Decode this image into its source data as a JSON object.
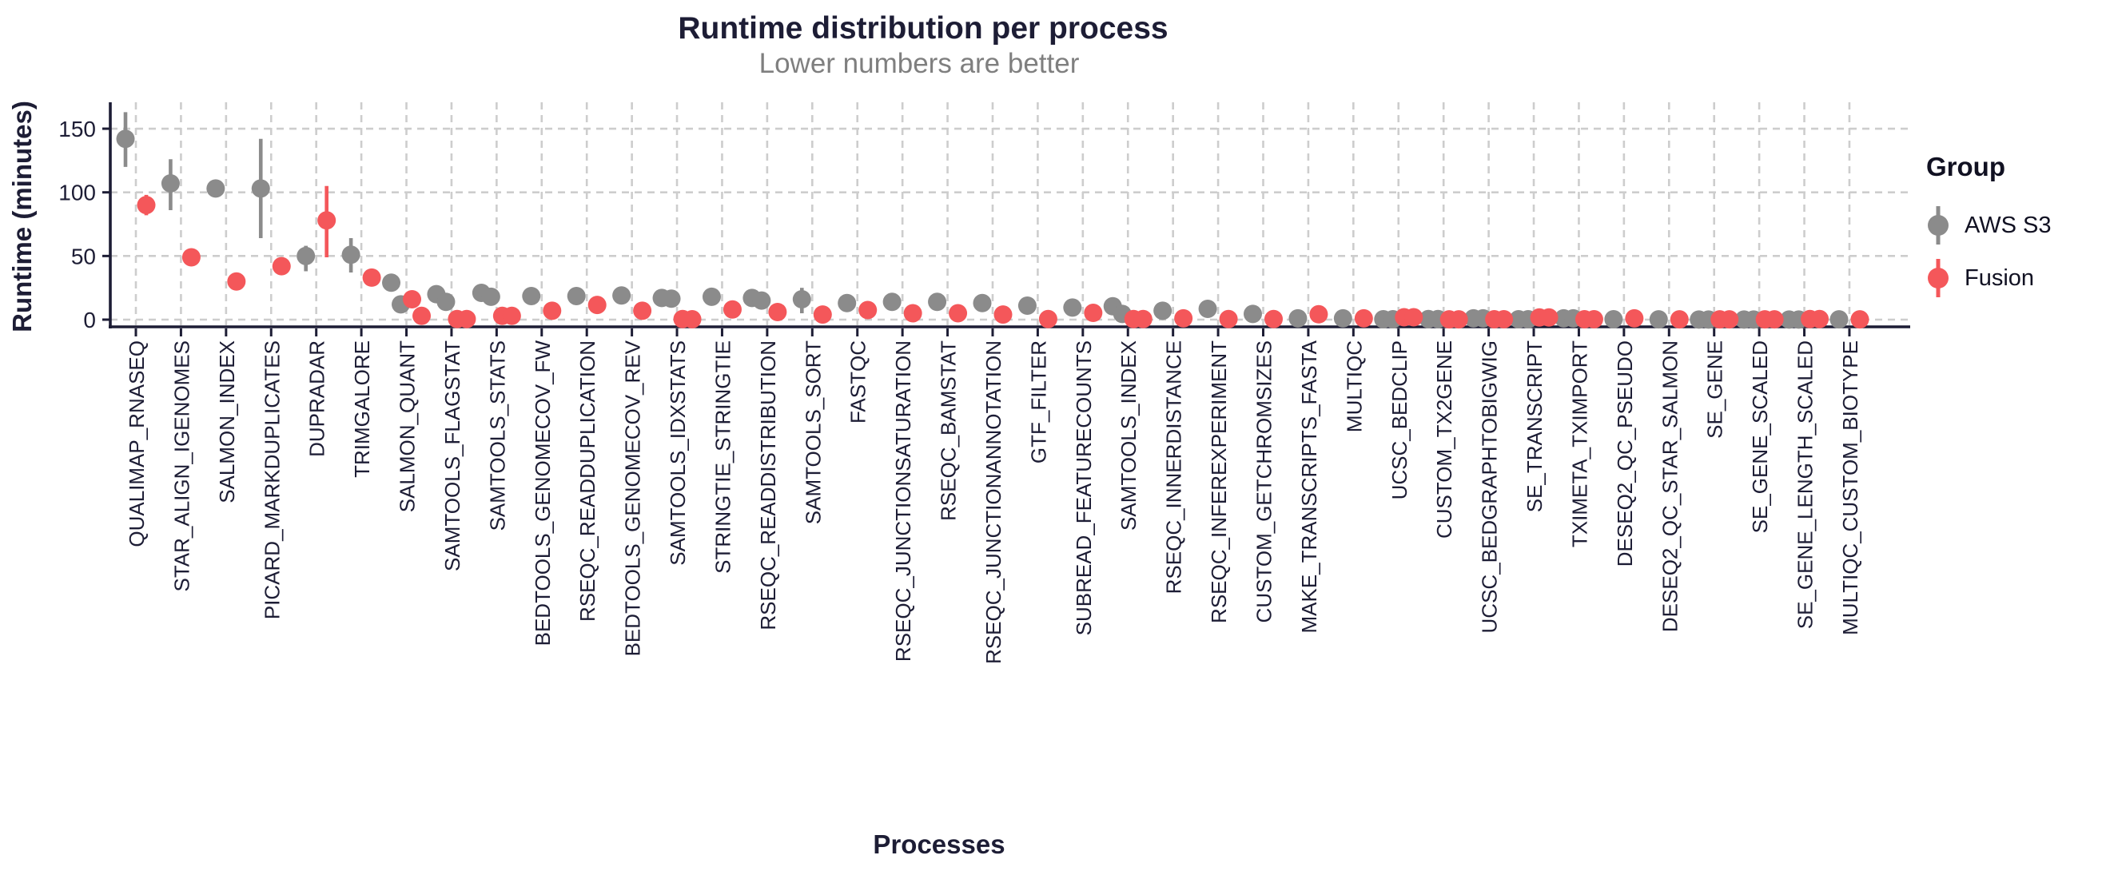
{
  "chart": {
    "title": "Runtime distribution per process",
    "subtitle": "Lower numbers are better",
    "xlabel": "Processes",
    "ylabel": "Runtime (minutes)"
  },
  "legend": {
    "title": "Group",
    "items": [
      {
        "label": "AWS S3",
        "color": "#8b8b8b"
      },
      {
        "label": "Fusion",
        "color": "#f4575a"
      }
    ]
  },
  "colors": {
    "axis_text": "#1d1d35",
    "grid": "#cdcdcd",
    "subtitle": "#7f7f7f",
    "aws_s3": "#8b8b8b",
    "fusion": "#f4575a"
  },
  "chart_data": {
    "type": "scatter",
    "style": "dodged pointrange with jittered replicate dots, dashed grid",
    "title": "Runtime distribution per process",
    "subtitle": "Lower numbers are better",
    "xlabel": "Processes",
    "ylabel": "Runtime (minutes)",
    "yticks": [
      0,
      50,
      100,
      150
    ],
    "ylim": [
      -8,
      171
    ],
    "legend_position": "right",
    "categories": [
      "QUALIMAP_RNASEQ",
      "STAR_ALIGN_IGENOMES",
      "SALMON_INDEX",
      "PICARD_MARKDUPLICATES",
      "DUPRADAR",
      "TRIMGALORE",
      "SALMON_QUANT",
      "SAMTOOLS_FLAGSTAT",
      "SAMTOOLS_STATS",
      "BEDTOOLS_GENOMECOV_FW",
      "RSEQC_READDUPLICATION",
      "BEDTOOLS_GENOMECOV_REV",
      "SAMTOOLS_IDXSTATS",
      "STRINGTIE_STRINGTIE",
      "RSEQC_READDISTRIBUTION",
      "SAMTOOLS_SORT",
      "FASTQC",
      "RSEQC_JUNCTIONSATURATION",
      "RSEQC_BAMSTAT",
      "RSEQC_JUNCTIONANNOTATION",
      "GTF_FILTER",
      "SUBREAD_FEATURECOUNTS",
      "SAMTOOLS_INDEX",
      "RSEQC_INNERDISTANCE",
      "RSEQC_INFEREXPERIMENT",
      "CUSTOM_GETCHROMSIZES",
      "MAKE_TRANSCRIPTS_FASTA",
      "MULTIQC",
      "UCSC_BEDCLIP",
      "CUSTOM_TX2GENE",
      "UCSC_BEDGRAPHTOBIGWIG",
      "SE_TRANSCRIPT",
      "TXIMETA_TXIMPORT",
      "DESEQ2_QC_PSEUDO",
      "DESEQ2_QC_STAR_SALMON",
      "SE_GENE",
      "SE_GENE_SCALED",
      "SE_GENE_LENGTH_SCALED",
      "MULTIQC_CUSTOM_BIOTYPE"
    ],
    "series": [
      {
        "name": "AWS S3",
        "color": "#8b8b8b",
        "points": [
          {
            "v": [
              142
            ],
            "r": [
              120,
              163
            ]
          },
          {
            "v": [
              107
            ],
            "r": [
              86,
              126
            ]
          },
          {
            "v": [
              103
            ]
          },
          {
            "v": [
              103
            ],
            "r": [
              64,
              142
            ]
          },
          {
            "v": [
              50
            ],
            "r": [
              38,
              58
            ]
          },
          {
            "v": [
              51
            ],
            "r": [
              37,
              64
            ]
          },
          {
            "v": [
              29,
              12
            ]
          },
          {
            "v": [
              20,
              14
            ]
          },
          {
            "v": [
              21,
              18
            ]
          },
          {
            "v": [
              18.5
            ]
          },
          {
            "v": [
              18.5
            ]
          },
          {
            "v": [
              19
            ]
          },
          {
            "v": [
              17,
              16.5
            ]
          },
          {
            "v": [
              18
            ]
          },
          {
            "v": [
              17,
              15
            ]
          },
          {
            "v": [
              16
            ],
            "r": [
              5,
              25
            ]
          },
          {
            "v": [
              13
            ]
          },
          {
            "v": [
              14
            ]
          },
          {
            "v": [
              14
            ]
          },
          {
            "v": [
              13
            ]
          },
          {
            "v": [
              11
            ]
          },
          {
            "v": [
              9.5
            ]
          },
          {
            "v": [
              10.5,
              4.5
            ]
          },
          {
            "v": [
              7
            ]
          },
          {
            "v": [
              8.5
            ]
          },
          {
            "v": [
              4.5
            ]
          },
          {
            "v": [
              1
            ]
          },
          {
            "v": [
              1
            ]
          },
          {
            "v": [
              0.3,
              0.3
            ]
          },
          {
            "v": [
              0.5,
              0.5
            ]
          },
          {
            "v": [
              1,
              1
            ]
          },
          {
            "v": [
              0.3,
              0.3
            ]
          },
          {
            "v": [
              1,
              1
            ]
          },
          {
            "v": [
              0.3
            ]
          },
          {
            "v": [
              0.2
            ]
          },
          {
            "v": [
              0.1,
              0.1
            ]
          },
          {
            "v": [
              0.1,
              0.1
            ]
          },
          {
            "v": [
              0.1,
              0.1
            ]
          },
          {
            "v": [
              0.2
            ]
          }
        ]
      },
      {
        "name": "Fusion",
        "color": "#f4575a",
        "points": [
          {
            "v": [
              90
            ],
            "r": [
              82,
              98
            ]
          },
          {
            "v": [
              49
            ]
          },
          {
            "v": [
              30
            ]
          },
          {
            "v": [
              42
            ]
          },
          {
            "v": [
              78
            ],
            "r": [
              49,
              105
            ]
          },
          {
            "v": [
              33
            ]
          },
          {
            "v": [
              16,
              3
            ]
          },
          {
            "v": [
              0.5,
              0.5
            ]
          },
          {
            "v": [
              3,
              3
            ]
          },
          {
            "v": [
              7
            ]
          },
          {
            "v": [
              11.5
            ]
          },
          {
            "v": [
              7
            ]
          },
          {
            "v": [
              0.5,
              0.3
            ]
          },
          {
            "v": [
              8
            ]
          },
          {
            "v": [
              6
            ]
          },
          {
            "v": [
              4
            ]
          },
          {
            "v": [
              7.5
            ]
          },
          {
            "v": [
              5
            ]
          },
          {
            "v": [
              5
            ]
          },
          {
            "v": [
              4
            ]
          },
          {
            "v": [
              0.5
            ]
          },
          {
            "v": [
              5.3
            ]
          },
          {
            "v": [
              0.5,
              0.5
            ]
          },
          {
            "v": [
              1
            ]
          },
          {
            "v": [
              0.5
            ]
          },
          {
            "v": [
              0.5
            ]
          },
          {
            "v": [
              4.2
            ]
          },
          {
            "v": [
              1
            ]
          },
          {
            "v": [
              1.9,
              1.9
            ]
          },
          {
            "v": [
              0.2,
              0.2
            ]
          },
          {
            "v": [
              0.3,
              0.3
            ]
          },
          {
            "v": [
              1.7,
              1.7
            ]
          },
          {
            "v": [
              0.3,
              0.3
            ]
          },
          {
            "v": [
              1
            ]
          },
          {
            "v": [
              0.2
            ]
          },
          {
            "v": [
              0.2,
              0.2
            ]
          },
          {
            "v": [
              0.2,
              0.2
            ]
          },
          {
            "v": [
              0.5,
              0.5
            ]
          },
          {
            "v": [
              0.2
            ]
          }
        ]
      }
    ]
  }
}
